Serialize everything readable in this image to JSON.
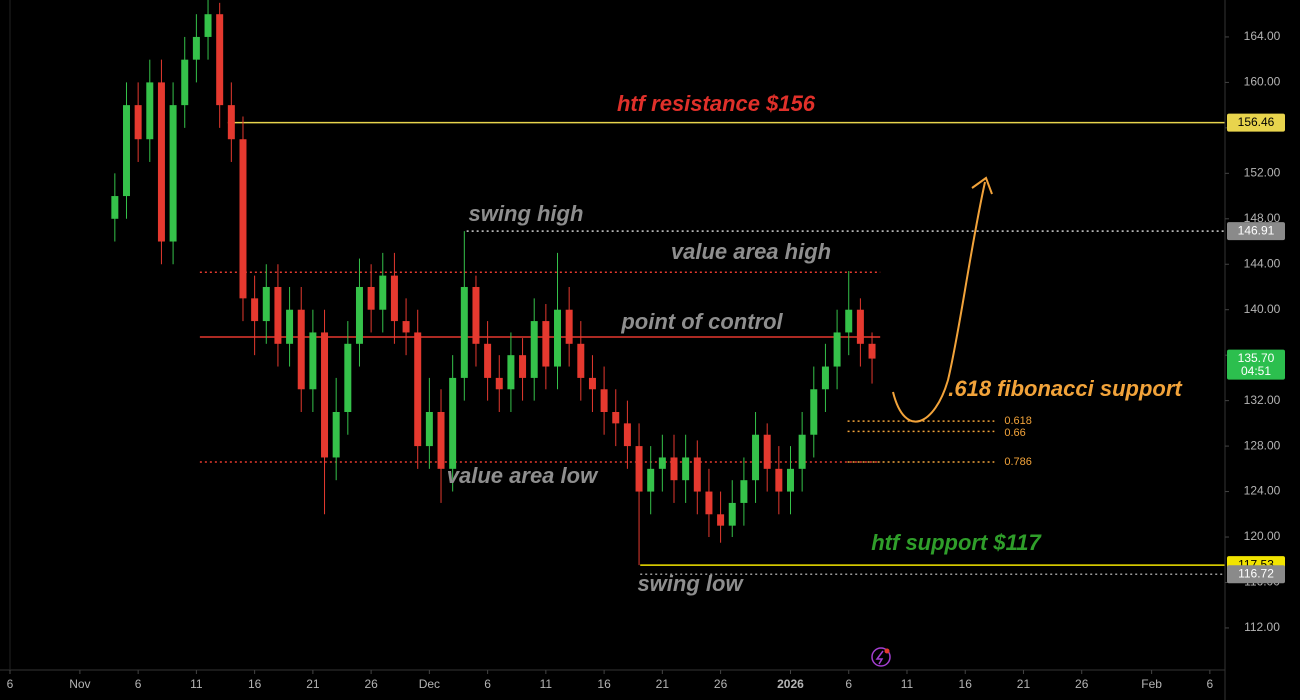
{
  "chart_data": {
    "type": "candlestick",
    "x": [
      3,
      4,
      5,
      6,
      7,
      8,
      9,
      10,
      11,
      12,
      13,
      14,
      15,
      16,
      17,
      18,
      19,
      20,
      21,
      22,
      23,
      24,
      25,
      26,
      27,
      28,
      29,
      30,
      31,
      32,
      33,
      34,
      35,
      36,
      37,
      38,
      39,
      40,
      41,
      42,
      43,
      44,
      45,
      46,
      47,
      48,
      49,
      50,
      51,
      52,
      53,
      54,
      55,
      56,
      57,
      58,
      59,
      60,
      61,
      62,
      63,
      64,
      65,
      66,
      67,
      68
    ],
    "open": [
      148,
      150,
      158,
      155,
      160,
      146,
      158,
      162,
      164,
      166,
      158,
      155,
      141,
      139,
      142,
      137,
      140,
      133,
      138,
      127,
      131,
      137,
      142,
      140,
      143,
      139,
      138,
      128,
      131,
      126,
      134,
      142,
      137,
      134,
      133,
      136,
      134,
      139,
      135,
      140,
      137,
      134,
      133,
      131,
      130,
      128,
      124,
      126,
      127,
      125,
      127,
      124,
      122,
      121,
      123,
      125,
      129,
      126,
      124,
      126,
      129,
      133,
      135,
      138,
      140,
      137
    ],
    "high": [
      152,
      160,
      160,
      162,
      162,
      160,
      164,
      166,
      168,
      167,
      160,
      157,
      143,
      144,
      144,
      142,
      142,
      140,
      140,
      134,
      139,
      144.5,
      144,
      145,
      145,
      141,
      140,
      134,
      133,
      136,
      146.91,
      143,
      139,
      136,
      138,
      137.5,
      141,
      140.5,
      145,
      142,
      139,
      136,
      135,
      133,
      132,
      130,
      128,
      129,
      129,
      129,
      128.5,
      126,
      124,
      125,
      127,
      131,
      130,
      128,
      128,
      131,
      135,
      137,
      140,
      143.4,
      141,
      138
    ],
    "low": [
      146,
      148,
      153,
      153,
      144,
      144,
      156,
      160,
      162,
      156,
      153,
      139,
      136,
      137,
      135,
      135,
      131,
      131,
      122,
      125,
      129,
      135,
      138,
      138,
      137,
      136,
      126,
      126,
      123,
      124,
      132,
      135,
      132,
      131,
      131,
      132,
      132,
      133,
      133,
      135,
      132,
      131,
      129,
      128,
      126,
      117.53,
      122,
      124,
      123,
      123,
      122,
      120,
      119.5,
      120,
      121,
      123,
      124,
      122,
      122,
      124,
      127,
      131,
      133,
      136,
      135,
      133.5
    ],
    "close": [
      150,
      158,
      155,
      160,
      146,
      158,
      162,
      164,
      166,
      158,
      155,
      141,
      139,
      142,
      137,
      140,
      133,
      138,
      127,
      131,
      137,
      142,
      140,
      143,
      139,
      138,
      128,
      131,
      126,
      134,
      142,
      137,
      134,
      133,
      136,
      134,
      139,
      135,
      140,
      137,
      134,
      133,
      131,
      130,
      128,
      124,
      126,
      127,
      125,
      127,
      124,
      122,
      121,
      123,
      125,
      129,
      126,
      124,
      126,
      129,
      133,
      135,
      138,
      140,
      137,
      135.7
    ],
    "up_color": "#35c24a",
    "down_color": "#e5392f",
    "xlim": [
      -6,
      98.3
    ],
    "ylim": [
      108.3,
      167.25
    ],
    "yticks": [
      {
        "value": 112,
        "label": "112.00"
      },
      {
        "value": 116,
        "label": "116.00"
      },
      {
        "value": 120,
        "label": "120.00"
      },
      {
        "value": 124,
        "label": "124.00"
      },
      {
        "value": 128,
        "label": "128.00"
      },
      {
        "value": 132,
        "label": "132.00"
      },
      {
        "value": 136,
        "label": "136.00"
      },
      {
        "value": 140,
        "label": "140.00"
      },
      {
        "value": 144,
        "label": "144.00"
      },
      {
        "value": 148,
        "label": "148.00"
      },
      {
        "value": 152,
        "label": "152.00"
      },
      {
        "value": 156,
        "label": "156.00"
      },
      {
        "value": 160,
        "label": "160.00"
      },
      {
        "value": 164,
        "label": "164.00"
      }
    ],
    "xticks": [
      {
        "value": -6,
        "label": "6"
      },
      {
        "value": 0,
        "label": "Nov"
      },
      {
        "value": 5,
        "label": "6"
      },
      {
        "value": 10,
        "label": "11"
      },
      {
        "value": 15,
        "label": "16"
      },
      {
        "value": 20,
        "label": "21"
      },
      {
        "value": 25,
        "label": "26"
      },
      {
        "value": 30,
        "label": "Dec"
      },
      {
        "value": 35,
        "label": "6"
      },
      {
        "value": 40,
        "label": "11"
      },
      {
        "value": 45,
        "label": "16"
      },
      {
        "value": 50,
        "label": "21"
      },
      {
        "value": 55,
        "label": "26"
      },
      {
        "value": 61,
        "label": "2026"
      },
      {
        "value": 66,
        "label": "6"
      },
      {
        "value": 71,
        "label": "11"
      },
      {
        "value": 76,
        "label": "16"
      },
      {
        "value": 81,
        "label": "21"
      },
      {
        "value": 86,
        "label": "26"
      },
      {
        "value": 92,
        "label": "Feb"
      },
      {
        "value": 97,
        "label": "6"
      }
    ],
    "price_lines": [
      {
        "value": 156.46,
        "start": 12.7,
        "color": "#e8d44d",
        "dash": "none",
        "badge": "#e8d44d"
      },
      {
        "value": 146.91,
        "start": 33.2,
        "color": "#cfcfcf",
        "dash": "2 3",
        "badge": "#8a8a8a"
      },
      {
        "value": 143.3,
        "start": 10.3,
        "end": 68.7,
        "color": "#e5392f",
        "dash": "2 3"
      },
      {
        "value": 137.6,
        "start": 10.3,
        "end": 68.7,
        "color": "#e5392f",
        "dash": "none"
      },
      {
        "value": 126.6,
        "start": 10.3,
        "end": 68.7,
        "color": "#e5392f",
        "dash": "2 3"
      },
      {
        "value": 117.53,
        "start": 48.1,
        "color": "#f2e400",
        "dash": "none",
        "badge": "#f2e400"
      },
      {
        "value": 116.72,
        "start": 48.1,
        "color": "#9a9a9a",
        "dash": "2 3",
        "badge": "#8a8a8a"
      }
    ],
    "fib_levels": [
      {
        "ratio": 0.618,
        "price": 130.2
      },
      {
        "ratio": 0.66,
        "price": 129.3
      },
      {
        "ratio": 0.786,
        "price": 126.6
      }
    ],
    "fib_start": 65.9,
    "fib_end": 78.5,
    "fib_color": "#f2a33a",
    "last_price": {
      "value": 135.7,
      "label": "135.70",
      "countdown": "04:51",
      "color": "#2cbf4e"
    },
    "annotations": {
      "resistance": "htf resistance $156",
      "swing_high": "swing high",
      "value_area_high": "value area high",
      "point_of_control": "point of control",
      "fib_support": ".618 fibonacci support",
      "value_area_low": "value area low",
      "support": "htf support $117",
      "swing_low": "swing low"
    }
  }
}
